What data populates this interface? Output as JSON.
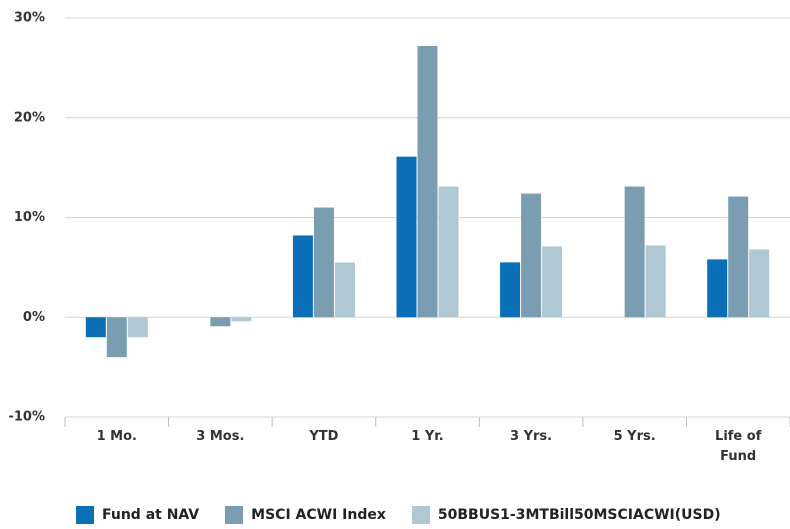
{
  "chart_data": {
    "type": "bar",
    "categories": [
      "1 Mo.",
      "3 Mos.",
      "YTD",
      "1 Yr.",
      "3 Yrs.",
      "5 Yrs.",
      "Life of Fund"
    ],
    "series": [
      {
        "name": "Fund at NAV",
        "color": "#0a6fb7",
        "values": [
          -2.0,
          null,
          8.2,
          16.1,
          5.5,
          null,
          5.8
        ]
      },
      {
        "name": "MSCI ACWI Index",
        "color": "#7a9db2",
        "values": [
          -4.0,
          -0.9,
          11.0,
          27.2,
          12.4,
          13.1,
          12.1
        ]
      },
      {
        "name": "50BBUS1-3MTBill50MSCIACWI(USD)",
        "color": "#b0c8d4",
        "values": [
          -2.0,
          -0.4,
          5.5,
          13.1,
          7.1,
          7.2,
          6.8
        ]
      }
    ],
    "ylim": [
      -10,
      30
    ],
    "yticks": [
      {
        "value": -10,
        "label": "-10%"
      },
      {
        "value": 0,
        "label": "0%"
      },
      {
        "value": 10,
        "label": "10%"
      },
      {
        "value": 20,
        "label": "20%"
      },
      {
        "value": 30,
        "label": "30%"
      }
    ],
    "grid": true
  }
}
